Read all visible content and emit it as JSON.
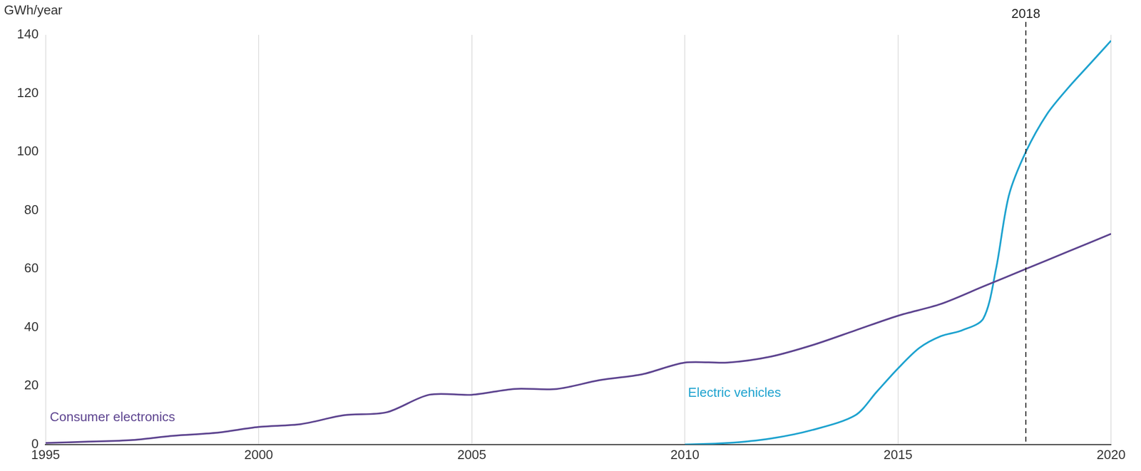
{
  "chart_data": {
    "type": "line",
    "y_label": "GWh/year",
    "xlim": [
      1995,
      2020
    ],
    "xticks": [
      1995,
      2000,
      2005,
      2010,
      2015,
      2020
    ],
    "ylim": [
      0,
      140
    ],
    "yticks": [
      0,
      20,
      40,
      60,
      80,
      100,
      120,
      140
    ],
    "grid": "x",
    "annotations": [
      {
        "x": 2018,
        "label": "2018",
        "line_style": "dashed"
      }
    ],
    "series": [
      {
        "name": "Consumer electronics",
        "color": "#5e4590",
        "line_style": "solid",
        "x": [
          1995,
          1996,
          1997,
          1998,
          1999,
          2000,
          2001,
          2002,
          2003,
          2004,
          2005,
          2006,
          2007,
          2008,
          2009,
          2010,
          2011,
          2012,
          2013,
          2014,
          2015,
          2016,
          2017,
          2018,
          2019,
          2020
        ],
        "values": [
          0.5,
          1,
          1.5,
          3,
          4,
          6,
          7,
          10,
          11,
          17,
          17,
          19,
          19,
          22,
          24,
          28,
          28,
          30,
          34,
          39,
          44,
          48,
          54,
          60,
          66,
          72
        ]
      },
      {
        "name": "Electric vehicles",
        "color": "#1fa3cf",
        "line_style": "solid",
        "x": [
          2010,
          2011,
          2012,
          2013,
          2014,
          2014.5,
          2015,
          2015.5,
          2016,
          2016.5,
          2017,
          2017.3,
          2017.6,
          2018,
          2018.5,
          2019,
          2019.5,
          2020
        ],
        "values": [
          0,
          0.5,
          2,
          5,
          10,
          18,
          26,
          33,
          37,
          39,
          43,
          60,
          85,
          100,
          113,
          122,
          130,
          138
        ]
      }
    ]
  }
}
